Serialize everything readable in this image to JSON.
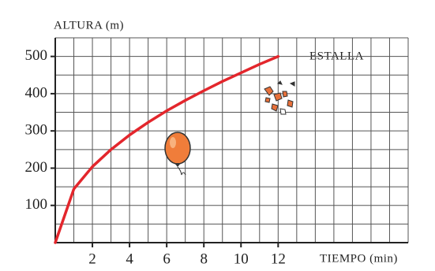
{
  "chart_data": {
    "type": "line",
    "y_label": "ALTURA (m)",
    "x_label": "TIEMPO (min)",
    "annotation": "ESTALLA",
    "x": [
      0,
      1,
      2,
      3,
      4,
      5,
      6,
      7,
      8,
      9,
      10,
      11,
      12
    ],
    "values": [
      0,
      144,
      204,
      250,
      289,
      323,
      354,
      382,
      408,
      433,
      456,
      479,
      500
    ],
    "color": "#e3262c",
    "xlim": [
      0,
      19
    ],
    "ylim": [
      0,
      550
    ],
    "xticks": [
      2,
      4,
      6,
      8,
      10,
      12
    ],
    "yticks": [
      100,
      200,
      300,
      400,
      500
    ],
    "grid": true
  }
}
